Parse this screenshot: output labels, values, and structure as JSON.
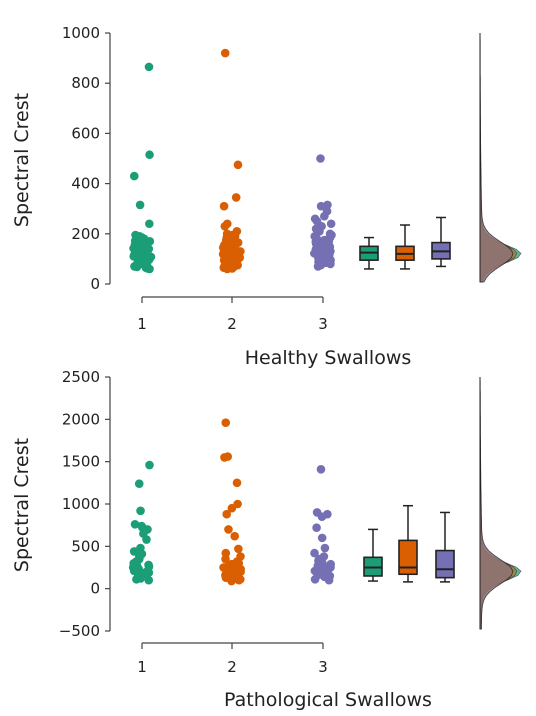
{
  "colors": {
    "group1": "#1b9e77",
    "group2": "#d95f02",
    "group3": "#7570b3",
    "density_fill": "#8a7178"
  },
  "chart_data": [
    {
      "type": "scatter",
      "subtype": "raincloud",
      "ylabel": "Spectral Crest",
      "xlabel": "Healthy Swallows",
      "categories": [
        "1",
        "2",
        "3"
      ],
      "yticks": [
        0,
        200,
        400,
        600,
        800,
        1000
      ],
      "ylim": [
        0,
        1000
      ],
      "series": [
        {
          "points": [
            865,
            515,
            430,
            315,
            240,
            195,
            190,
            185,
            180,
            175,
            172,
            170,
            168,
            165,
            160,
            158,
            155,
            150,
            148,
            145,
            142,
            140,
            138,
            135,
            132,
            130,
            128,
            125,
            122,
            120,
            118,
            115,
            112,
            110,
            108,
            105,
            102,
            100,
            98,
            95,
            92,
            90,
            88,
            85,
            82,
            80,
            78,
            75,
            72,
            70,
            68,
            65,
            62,
            60
          ],
          "box": {
            "min": 60,
            "q1": 95,
            "median": 125,
            "q3": 150,
            "max": 185
          }
        },
        {
          "points": [
            920,
            475,
            345,
            310,
            240,
            230,
            210,
            200,
            195,
            190,
            185,
            180,
            175,
            172,
            170,
            168,
            165,
            162,
            160,
            158,
            155,
            150,
            148,
            145,
            142,
            140,
            138,
            135,
            132,
            130,
            128,
            125,
            122,
            120,
            118,
            115,
            112,
            110,
            108,
            105,
            102,
            100,
            98,
            95,
            92,
            90,
            88,
            85,
            82,
            80,
            78,
            75,
            72,
            70,
            68,
            65,
            62,
            60
          ],
          "box": {
            "min": 60,
            "q1": 95,
            "median": 120,
            "q3": 150,
            "max": 235
          }
        },
        {
          "points": [
            500,
            315,
            310,
            290,
            270,
            260,
            250,
            240,
            230,
            220,
            210,
            200,
            195,
            190,
            185,
            180,
            175,
            170,
            168,
            165,
            160,
            158,
            155,
            150,
            148,
            145,
            142,
            140,
            138,
            135,
            132,
            130,
            128,
            125,
            122,
            120,
            118,
            115,
            112,
            110,
            108,
            105,
            102,
            100,
            98,
            95,
            92,
            90,
            88,
            85,
            82,
            80,
            75,
            70
          ],
          "box": {
            "min": 70,
            "q1": 100,
            "median": 130,
            "q3": 165,
            "max": 265
          }
        }
      ],
      "density_peak": 120
    },
    {
      "type": "scatter",
      "subtype": "raincloud",
      "ylabel": "Spectral Crest",
      "xlabel": "Pathological Swallows",
      "categories": [
        "1",
        "2",
        "3"
      ],
      "yticks": [
        -500,
        0,
        500,
        1000,
        1500,
        2000,
        2500
      ],
      "ylim": [
        -500,
        2500
      ],
      "series": [
        {
          "points": [
            1460,
            1240,
            920,
            760,
            740,
            720,
            700,
            650,
            580,
            480,
            440,
            410,
            380,
            350,
            320,
            300,
            280,
            270,
            260,
            250,
            240,
            230,
            220,
            210,
            200,
            190,
            180,
            170,
            160,
            150,
            140,
            130,
            120,
            110,
            100
          ],
          "box": {
            "min": 90,
            "q1": 150,
            "median": 250,
            "q3": 370,
            "max": 700
          }
        },
        {
          "points": [
            1960,
            1560,
            1550,
            1250,
            1000,
            950,
            880,
            700,
            620,
            470,
            420,
            380,
            350,
            320,
            300,
            290,
            280,
            270,
            260,
            250,
            240,
            230,
            220,
            210,
            200,
            190,
            180,
            170,
            160,
            150,
            140,
            130,
            120,
            110,
            100,
            90
          ],
          "box": {
            "min": 80,
            "q1": 170,
            "median": 250,
            "q3": 570,
            "max": 980
          }
        },
        {
          "points": [
            1410,
            900,
            880,
            850,
            720,
            600,
            480,
            420,
            380,
            350,
            330,
            310,
            290,
            270,
            260,
            250,
            240,
            230,
            220,
            210,
            200,
            190,
            180,
            170,
            160,
            150,
            140,
            130,
            120,
            110,
            100
          ],
          "box": {
            "min": 80,
            "q1": 130,
            "median": 230,
            "q3": 450,
            "max": 900
          }
        }
      ],
      "density_peak": 200
    }
  ]
}
